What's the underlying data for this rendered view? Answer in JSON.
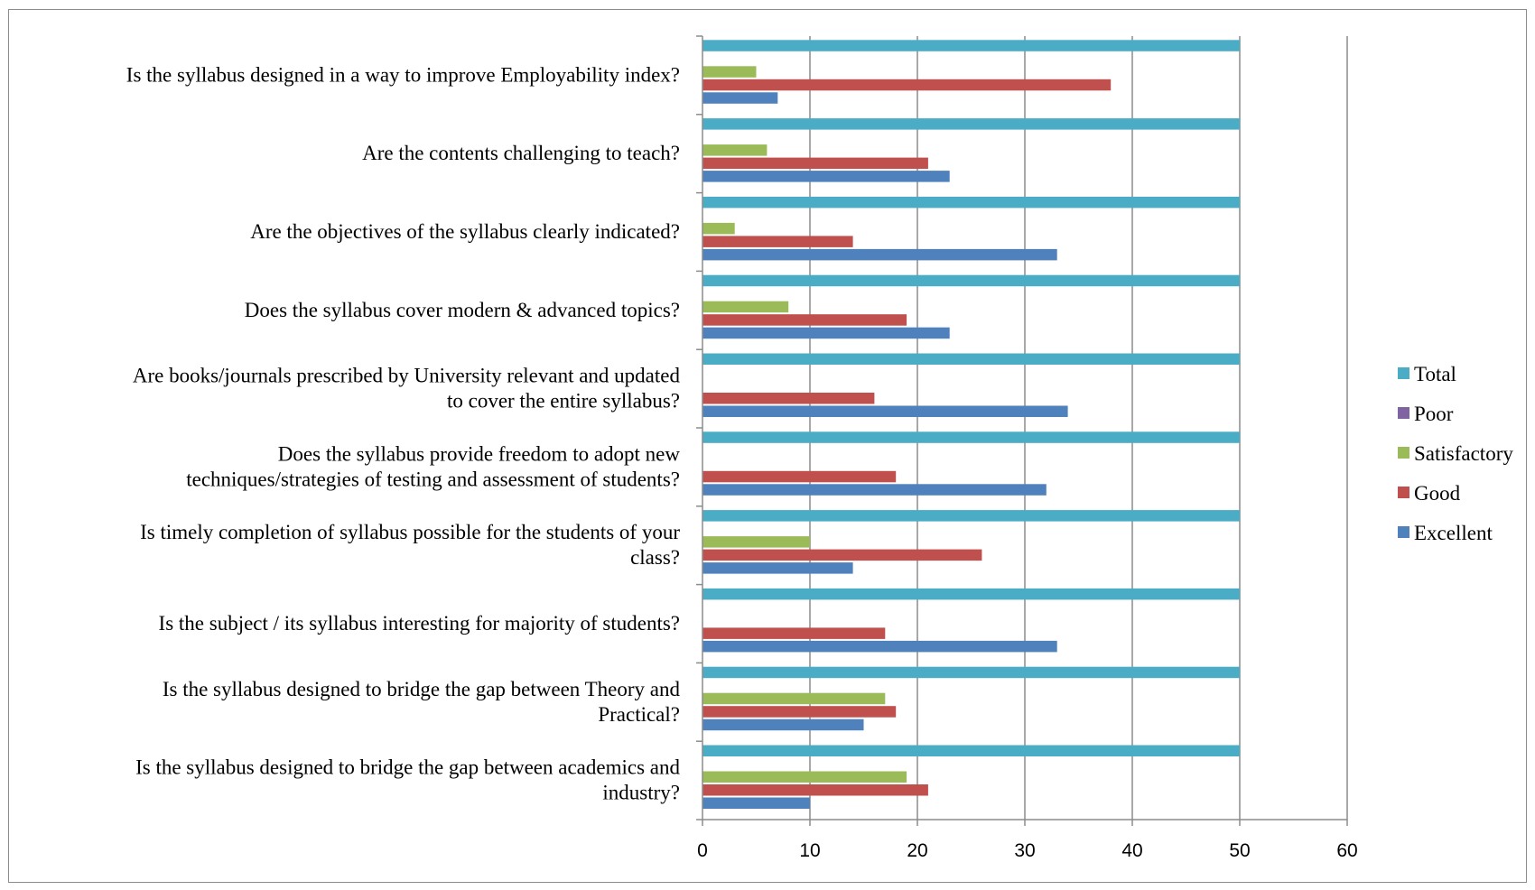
{
  "chart_data": {
    "type": "bar",
    "orientation": "horizontal",
    "title": "",
    "xlabel": "",
    "ylabel": "",
    "xlim": [
      0,
      60
    ],
    "xticks": [
      0,
      10,
      20,
      30,
      40,
      50,
      60
    ],
    "grid": "vertical",
    "legend_position": "right",
    "categories": [
      [
        "Is the syllabus designed in a way to improve Employability index?"
      ],
      [
        "Are the contents challenging to teach?"
      ],
      [
        "Are the objectives of the syllabus clearly indicated?"
      ],
      [
        "Does the syllabus cover modern & advanced topics?"
      ],
      [
        "Are books/journals prescribed by University relevant and updated",
        "to cover the entire syllabus?"
      ],
      [
        "Does the syllabus provide freedom to adopt new",
        "techniques/strategies of testing and assessment of students?"
      ],
      [
        "Is timely completion of syllabus possible for the students of your",
        "class?"
      ],
      [
        "Is the subject / its syllabus interesting for majority of students?"
      ],
      [
        "Is the syllabus designed to bridge the gap between Theory and",
        "Practical?"
      ],
      [
        "Is the syllabus designed to bridge the gap between academics and",
        "industry?"
      ]
    ],
    "series": [
      {
        "name": "Excellent",
        "color": "#4f81bd",
        "values": [
          7,
          23,
          33,
          23,
          34,
          32,
          14,
          33,
          15,
          10
        ]
      },
      {
        "name": "Good",
        "color": "#c0504d",
        "values": [
          38,
          21,
          14,
          19,
          16,
          18,
          26,
          17,
          18,
          21
        ]
      },
      {
        "name": "Satisfactory",
        "color": "#9bbb59",
        "values": [
          5,
          6,
          3,
          8,
          0,
          0,
          10,
          0,
          17,
          19
        ]
      },
      {
        "name": "Poor",
        "color": "#8064a2",
        "values": [
          0,
          0,
          0,
          0,
          0,
          0,
          0,
          0,
          0,
          0
        ]
      },
      {
        "name": "Total",
        "color": "#4bacc6",
        "values": [
          50,
          50,
          50,
          50,
          50,
          50,
          50,
          50,
          50,
          50
        ]
      }
    ],
    "legend_order": [
      "Total",
      "Poor",
      "Satisfactory",
      "Good",
      "Excellent"
    ]
  }
}
